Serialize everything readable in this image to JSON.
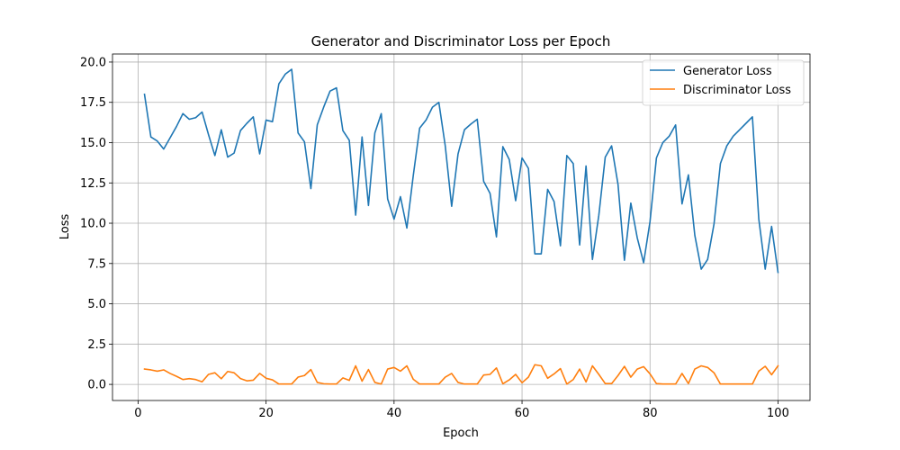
{
  "chart_data": {
    "type": "line",
    "title": "Generator and Discriminator Loss per Epoch",
    "xlabel": "Epoch",
    "ylabel": "Loss",
    "xlim": [
      -4,
      105
    ],
    "ylim": [
      -1,
      20.5
    ],
    "xticks": [
      0,
      20,
      40,
      60,
      80,
      100
    ],
    "yticks": [
      0.0,
      2.5,
      5.0,
      7.5,
      10.0,
      12.5,
      15.0,
      17.5,
      20.0
    ],
    "ytick_labels": [
      "0.0",
      "2.5",
      "5.0",
      "7.5",
      "10.0",
      "12.5",
      "15.0",
      "17.5",
      "20.0"
    ],
    "grid": true,
    "legend_position": "top-right",
    "x": [
      1,
      2,
      3,
      4,
      5,
      6,
      7,
      8,
      9,
      10,
      11,
      12,
      13,
      14,
      15,
      16,
      17,
      18,
      19,
      20,
      21,
      22,
      23,
      24,
      25,
      26,
      27,
      28,
      29,
      30,
      31,
      32,
      33,
      34,
      35,
      36,
      37,
      38,
      39,
      40,
      41,
      42,
      43,
      44,
      45,
      46,
      47,
      48,
      49,
      50,
      51,
      52,
      53,
      54,
      55,
      56,
      57,
      58,
      59,
      60,
      61,
      62,
      63,
      64,
      65,
      66,
      67,
      68,
      69,
      70,
      71,
      72,
      73,
      74,
      75,
      76,
      77,
      78,
      79,
      80,
      81,
      82,
      83,
      84,
      85,
      86,
      87,
      88,
      89,
      90,
      91,
      92,
      93,
      94,
      95,
      96,
      97,
      98,
      99,
      100
    ],
    "series": [
      {
        "name": "Generator Loss",
        "color": "#1f77b4",
        "values": [
          18.0,
          15.35,
          15.1,
          14.6,
          15.3,
          16.0,
          16.8,
          16.45,
          16.55,
          16.9,
          15.5,
          14.2,
          15.8,
          14.1,
          14.35,
          15.75,
          16.2,
          16.6,
          14.3,
          16.4,
          16.3,
          18.65,
          19.25,
          19.55,
          15.6,
          15.05,
          12.15,
          16.1,
          17.2,
          18.2,
          18.4,
          15.75,
          15.15,
          10.5,
          15.35,
          11.1,
          15.6,
          16.8,
          11.5,
          10.25,
          11.65,
          9.7,
          12.95,
          15.9,
          16.4,
          17.2,
          17.5,
          14.8,
          11.05,
          14.3,
          15.8,
          16.15,
          16.45,
          12.6,
          11.85,
          9.15,
          14.75,
          13.95,
          11.4,
          14.05,
          13.4,
          8.1,
          8.1,
          12.1,
          11.35,
          8.6,
          14.2,
          13.7,
          8.65,
          13.55,
          7.75,
          10.5,
          14.1,
          14.8,
          12.4,
          7.7,
          11.25,
          9.1,
          7.55,
          10.1,
          14.05,
          15.0,
          15.4,
          16.1,
          11.2,
          13.0,
          9.25,
          7.15,
          7.75,
          9.95,
          13.7,
          14.8,
          15.4,
          15.8,
          16.2,
          16.6,
          10.25,
          7.15,
          9.8,
          6.95
        ]
      },
      {
        "name": "Discriminator Loss",
        "color": "#ff7f0e",
        "values": [
          0.95,
          0.9,
          0.82,
          0.9,
          0.68,
          0.5,
          0.3,
          0.36,
          0.3,
          0.16,
          0.62,
          0.72,
          0.35,
          0.8,
          0.72,
          0.36,
          0.22,
          0.26,
          0.68,
          0.38,
          0.28,
          0.02,
          0.02,
          0.02,
          0.45,
          0.55,
          0.92,
          0.12,
          0.04,
          0.02,
          0.02,
          0.4,
          0.25,
          1.15,
          0.2,
          0.92,
          0.12,
          0.02,
          0.95,
          1.05,
          0.82,
          1.15,
          0.32,
          0.02,
          0.02,
          0.02,
          0.02,
          0.45,
          0.68,
          0.12,
          0.02,
          0.02,
          0.02,
          0.58,
          0.62,
          1.02,
          0.04,
          0.28,
          0.62,
          0.1,
          0.45,
          1.22,
          1.15,
          0.38,
          0.65,
          0.98,
          0.02,
          0.3,
          0.95,
          0.15,
          1.15,
          0.62,
          0.05,
          0.05,
          0.55,
          1.12,
          0.45,
          0.95,
          1.1,
          0.65,
          0.05,
          0.02,
          0.02,
          0.02,
          0.68,
          0.05,
          0.95,
          1.15,
          1.05,
          0.72,
          0.02,
          0.02,
          0.02,
          0.02,
          0.02,
          0.02,
          0.82,
          1.12,
          0.6,
          1.15
        ]
      }
    ]
  }
}
